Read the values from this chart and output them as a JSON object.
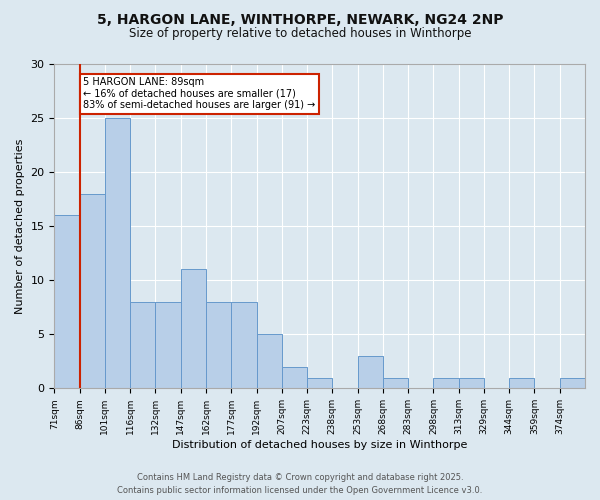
{
  "title_line1": "5, HARGON LANE, WINTHORPE, NEWARK, NG24 2NP",
  "title_line2": "Size of property relative to detached houses in Winthorpe",
  "xlabel": "Distribution of detached houses by size in Winthorpe",
  "ylabel": "Number of detached properties",
  "categories": [
    "71sqm",
    "86sqm",
    "101sqm",
    "116sqm",
    "132sqm",
    "147sqm",
    "162sqm",
    "177sqm",
    "192sqm",
    "207sqm",
    "223sqm",
    "238sqm",
    "253sqm",
    "268sqm",
    "283sqm",
    "298sqm",
    "313sqm",
    "329sqm",
    "344sqm",
    "359sqm",
    "374sqm"
  ],
  "values": [
    16,
    18,
    25,
    8,
    8,
    11,
    8,
    8,
    5,
    2,
    1,
    0,
    3,
    1,
    0,
    1,
    1,
    0,
    1,
    0,
    1
  ],
  "bar_color": "#b8cfe8",
  "bar_edge_color": "#6699cc",
  "background_color": "#dce8f0",
  "plot_bg_color": "#dce8f0",
  "grid_color": "#ffffff",
  "vline_x_idx": 1.0,
  "vline_color": "#cc2200",
  "annotation_text": "5 HARGON LANE: 89sqm\n← 16% of detached houses are smaller (17)\n83% of semi-detached houses are larger (91) →",
  "annotation_box_color": "#ffffff",
  "annotation_box_edge": "#cc2200",
  "footer_line1": "Contains HM Land Registry data © Crown copyright and database right 2025.",
  "footer_line2": "Contains public sector information licensed under the Open Government Licence v3.0.",
  "ylim": [
    0,
    30
  ],
  "yticks": [
    0,
    5,
    10,
    15,
    20,
    25,
    30
  ]
}
